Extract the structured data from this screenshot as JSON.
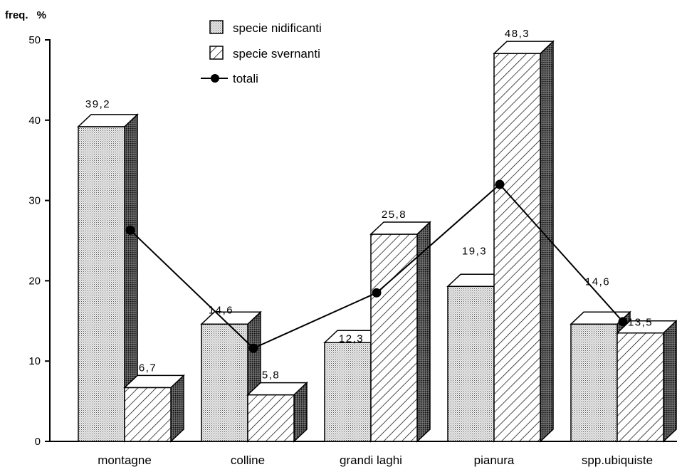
{
  "chart_data": {
    "type": "bar",
    "ylabel": "freq.  %",
    "ylim": [
      0,
      50
    ],
    "yticks": [
      "0",
      "10",
      "20",
      "30",
      "40",
      "50"
    ],
    "categories": [
      "montagne",
      "colline",
      "grandi  laghi",
      "pianura",
      "spp.ubiquiste"
    ],
    "series": [
      {
        "name": "specie nidificanti",
        "style": "dotted",
        "values": [
          39.2,
          14.6,
          12.3,
          19.3,
          14.6
        ],
        "labels": [
          "39,2",
          "14,6",
          "12,3",
          "19,3",
          "14,6"
        ]
      },
      {
        "name": "specie svernanti",
        "style": "hatched",
        "values": [
          6.7,
          5.8,
          25.8,
          48.3,
          13.5
        ],
        "labels": [
          "6,7",
          "5,8",
          "25,8",
          "48,3",
          "13,5"
        ]
      },
      {
        "name": "totali",
        "style": "line-with-markers",
        "values": [
          26.3,
          11.6,
          18.5,
          32.0,
          14.9
        ]
      }
    ],
    "grid": false,
    "legend": "top-center",
    "style": "3d-bars"
  }
}
